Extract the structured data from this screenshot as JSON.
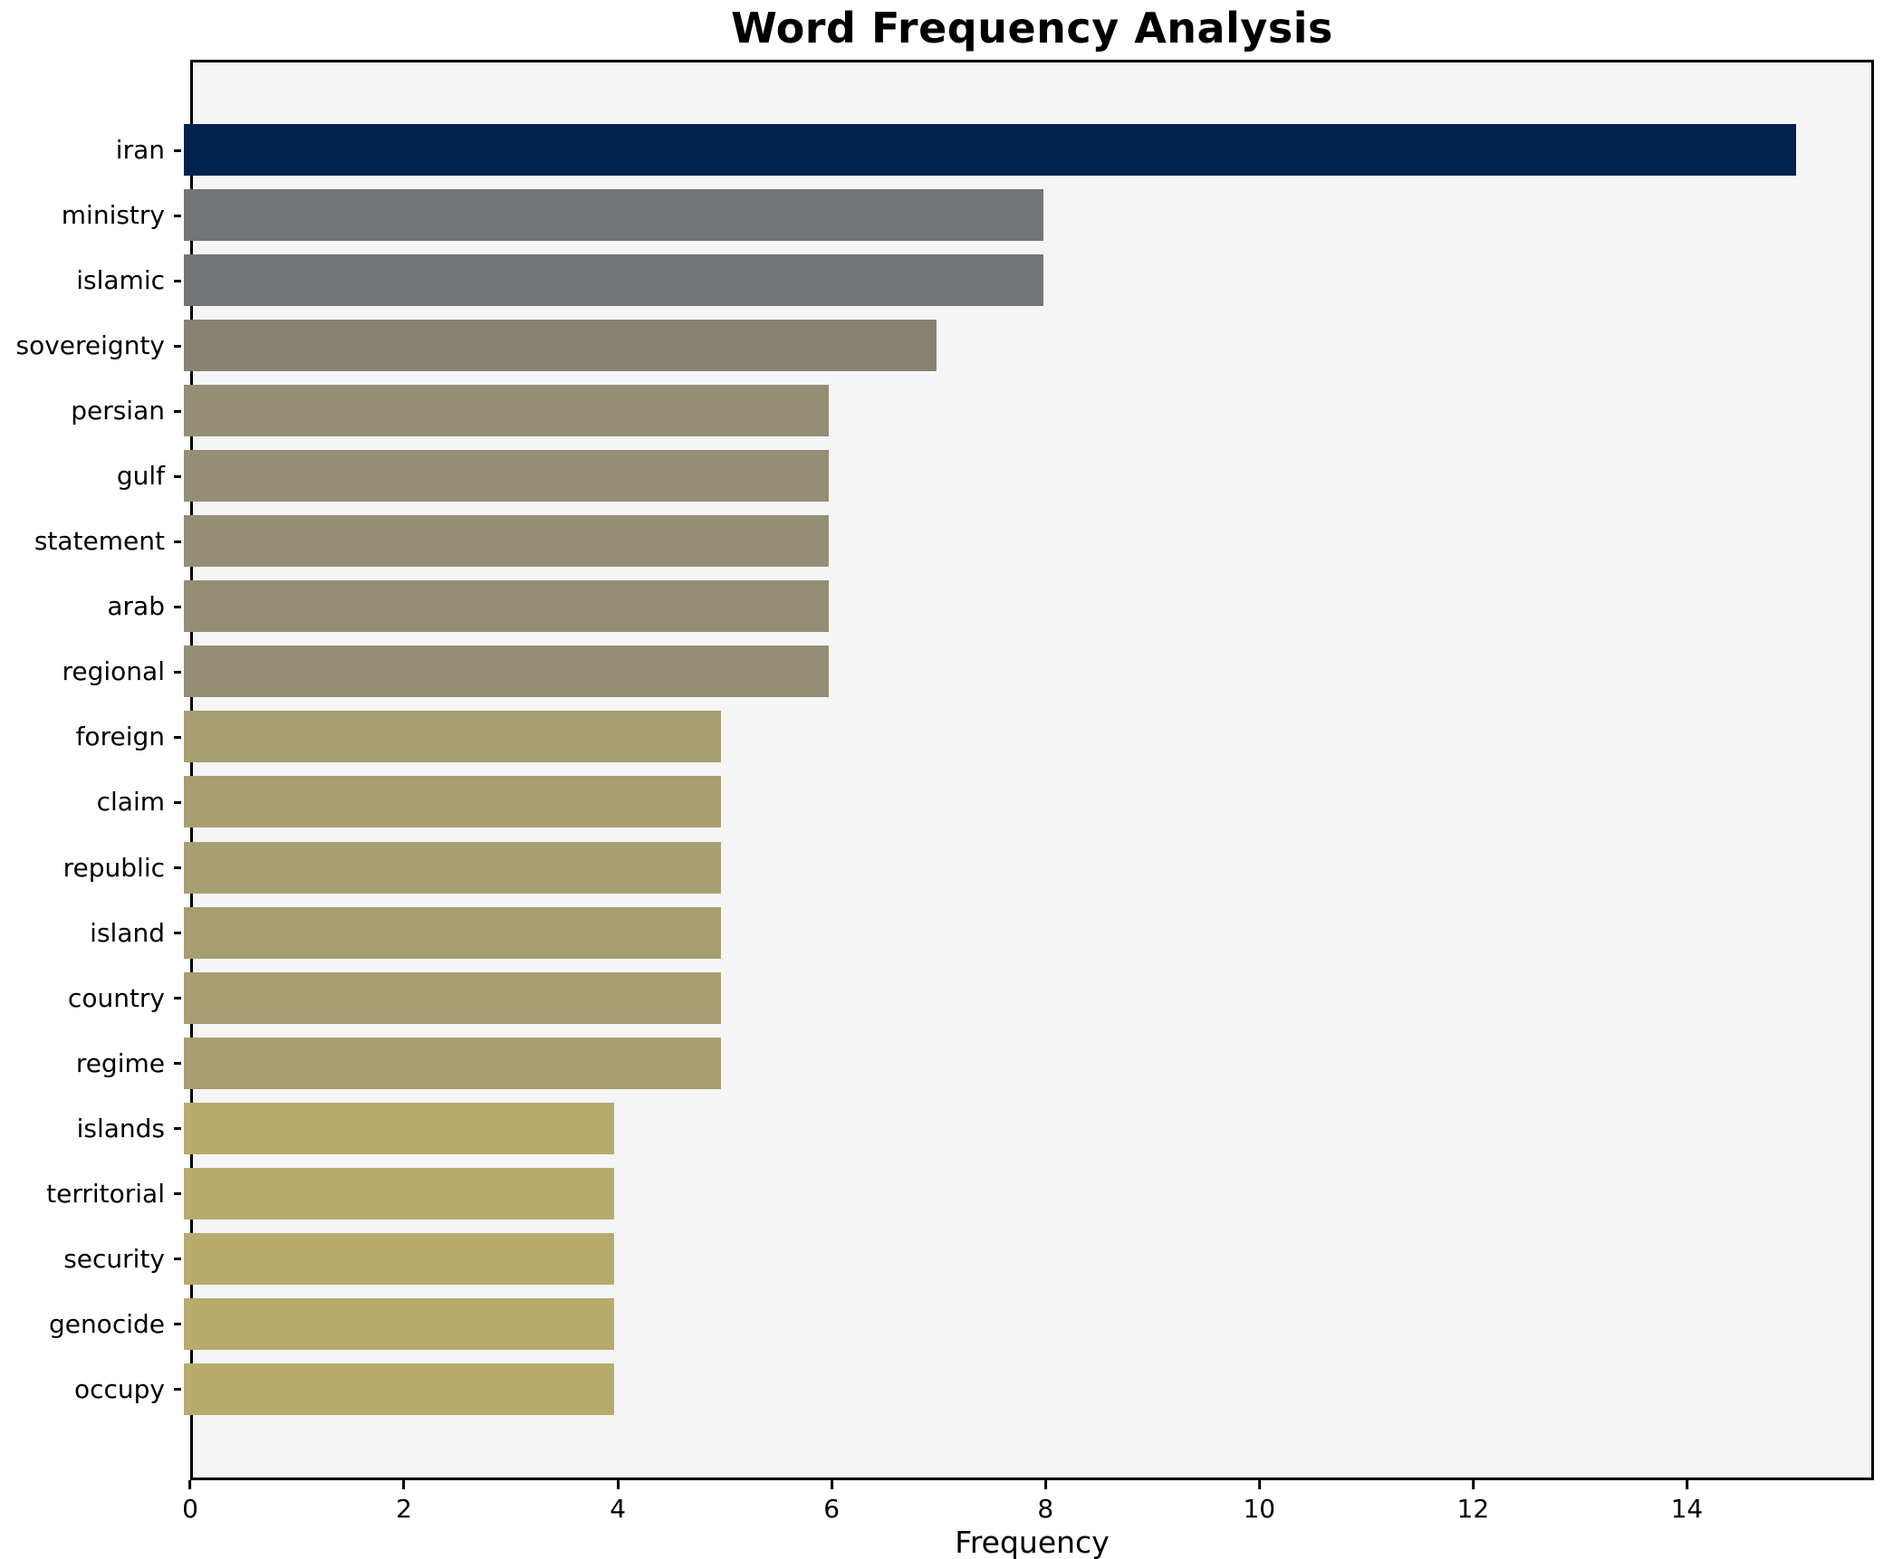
{
  "chart_data": {
    "type": "bar",
    "orientation": "horizontal",
    "title": "Word Frequency Analysis",
    "xlabel": "Frequency",
    "ylabel": "",
    "categories": [
      "iran",
      "ministry",
      "islamic",
      "sovereignty",
      "persian",
      "gulf",
      "statement",
      "arab",
      "regional",
      "foreign",
      "claim",
      "republic",
      "island",
      "country",
      "regime",
      "islands",
      "territorial",
      "security",
      "genocide",
      "occupy"
    ],
    "values": [
      15,
      8,
      8,
      7,
      6,
      6,
      6,
      6,
      6,
      5,
      5,
      5,
      5,
      5,
      5,
      4,
      4,
      4,
      4,
      4
    ],
    "bar_colors": [
      "#00224e",
      "#737476",
      "#737476",
      "#858274",
      "#948e75",
      "#948e75",
      "#948e75",
      "#948e75",
      "#948e75",
      "#a89e73",
      "#a89e73",
      "#a89e73",
      "#a89e73",
      "#a89e73",
      "#a89e73",
      "#b7ab6d",
      "#b7ab6d",
      "#b7ab6d",
      "#b7ab6d",
      "#b7ab6d"
    ],
    "xlim": [
      0,
      15.75
    ],
    "xticks": [
      0,
      2,
      4,
      6,
      8,
      10,
      12,
      14
    ],
    "grid": false,
    "legend": "none",
    "plot_background": "#f5f5f6",
    "figure_background": "#ffffff",
    "spine_color": "#000000"
  }
}
